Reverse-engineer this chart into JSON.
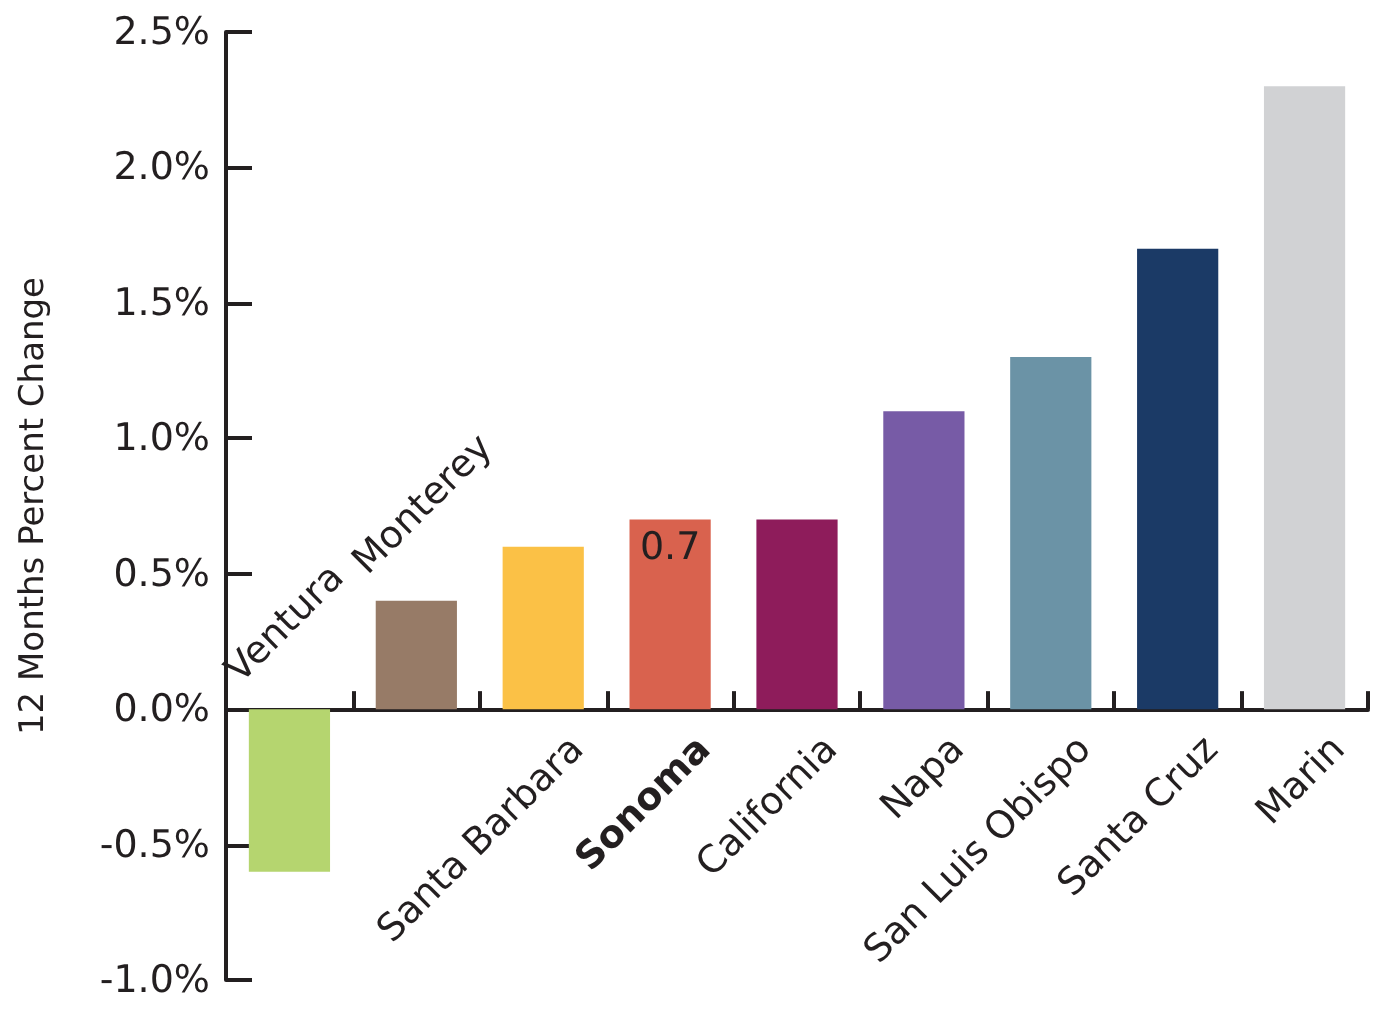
{
  "chart_data": {
    "type": "bar",
    "ylabel": "12 Months Percent Change",
    "categories": [
      "Ventura",
      "Monterey",
      "Santa Barbara",
      "Sonoma",
      "California",
      "Napa",
      "San Luis Obispo",
      "Santa Cruz",
      "Marin"
    ],
    "values": [
      -0.6,
      0.4,
      0.6,
      0.7,
      0.7,
      1.1,
      1.3,
      1.7,
      2.3
    ],
    "colors": [
      "#b5d56f",
      "#977b67",
      "#fbc146",
      "#d9624e",
      "#8e1c5b",
      "#775ba6",
      "#6b93a6",
      "#1b3a66",
      "#d1d2d4"
    ],
    "value_labels": [
      null,
      null,
      null,
      "0.7",
      null,
      null,
      null,
      null,
      null
    ],
    "ylim": [
      -1.0,
      2.5
    ],
    "yticks": [
      {
        "value": -1.0,
        "label": "-1.0%"
      },
      {
        "value": -0.5,
        "label": "-0.5%"
      },
      {
        "value": 0,
        "label": "0.0%"
      },
      {
        "value": 0.5,
        "label": "0.5%"
      },
      {
        "value": 1.0,
        "label": "1.0%"
      },
      {
        "value": 1.5,
        "label": "1.5%"
      },
      {
        "value": 2.0,
        "label": "2.0%"
      },
      {
        "value": 2.5,
        "label": "2.5%"
      }
    ],
    "grid": false
  }
}
